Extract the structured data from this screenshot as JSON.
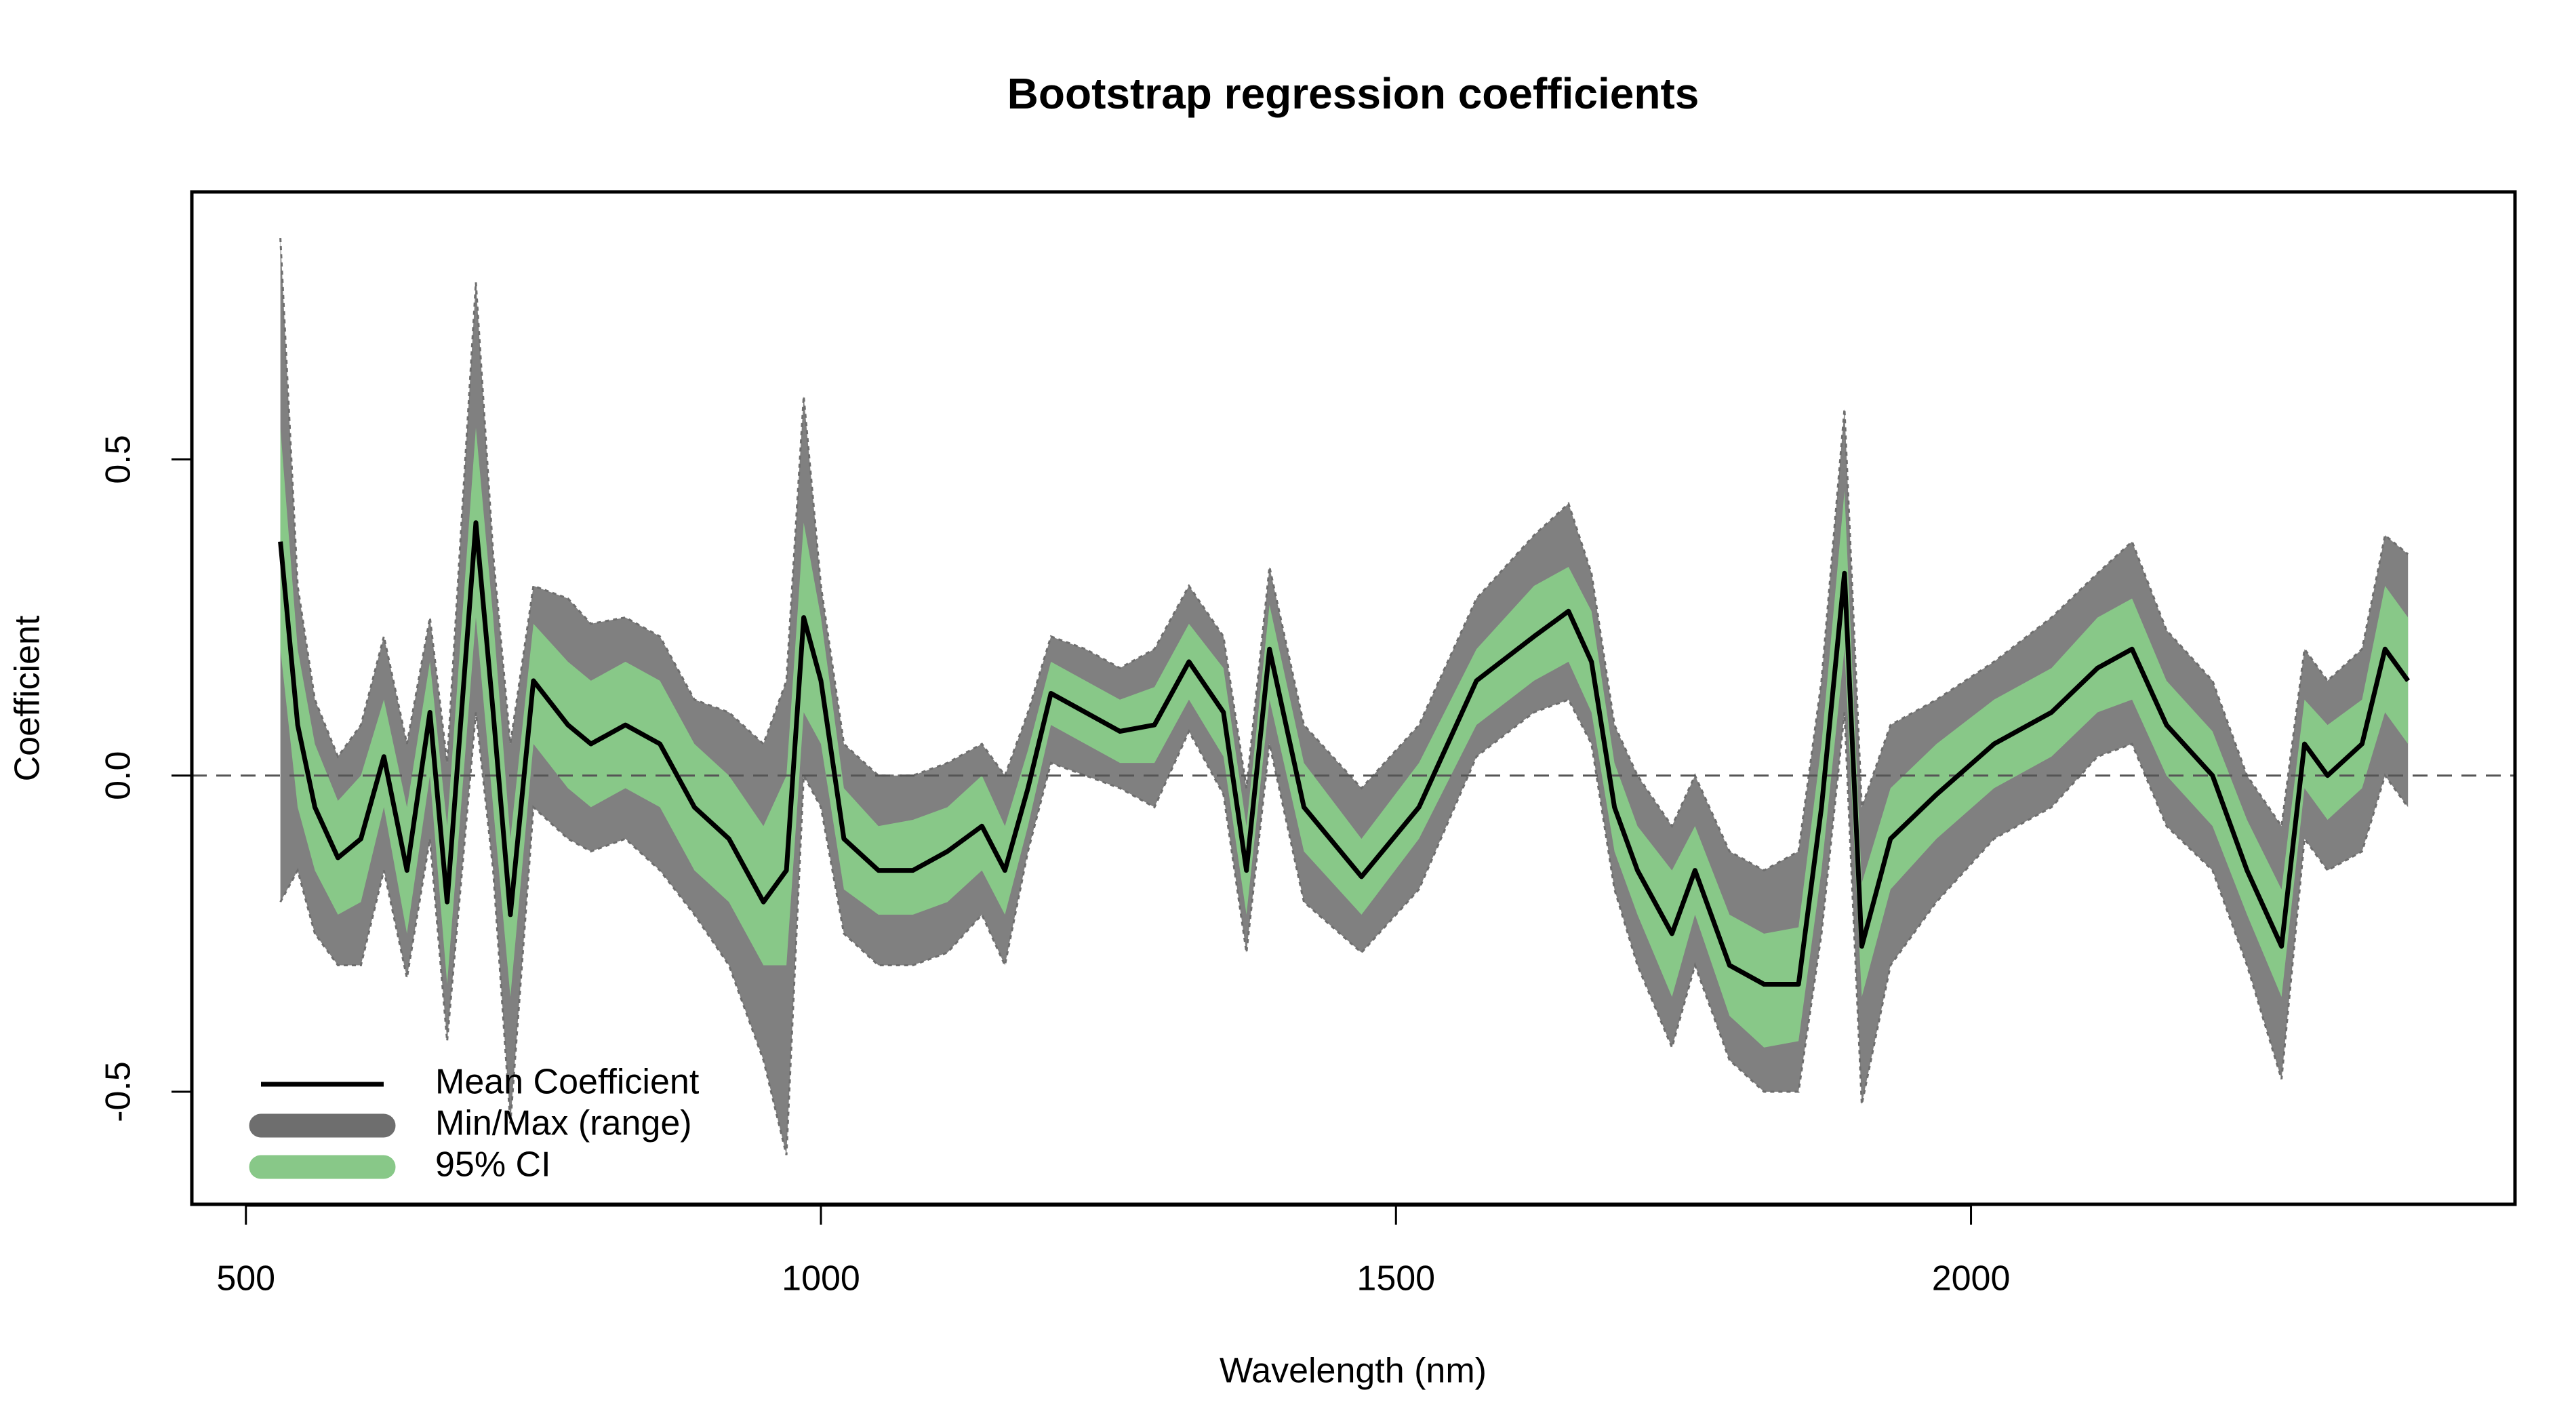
{
  "chart_data": {
    "type": "band-line",
    "title": "Bootstrap regression coefficients",
    "xlabel": "Wavelength (nm)",
    "ylabel": "Coefficient",
    "xlim": [
      453,
      2473
    ],
    "ylim": [
      -0.678,
      0.923
    ],
    "xticks": [
      500,
      1000,
      1500,
      2000
    ],
    "yticks": [
      -0.5,
      {
        "value": 0,
        "label": "0.0"
      },
      0.5
    ],
    "hline": 0,
    "legend": "bottom-left",
    "x": [
      530,
      545,
      560,
      580,
      600,
      620,
      640,
      660,
      675,
      700,
      715,
      730,
      750,
      780,
      800,
      830,
      860,
      890,
      920,
      950,
      970,
      985,
      1000,
      1020,
      1050,
      1080,
      1110,
      1140,
      1160,
      1180,
      1200,
      1230,
      1260,
      1290,
      1320,
      1350,
      1370,
      1390,
      1420,
      1470,
      1520,
      1570,
      1620,
      1650,
      1670,
      1690,
      1710,
      1740,
      1760,
      1790,
      1820,
      1850,
      1870,
      1890,
      1905,
      1930,
      1970,
      2020,
      2070,
      2110,
      2140,
      2170,
      2210,
      2240,
      2270,
      2290,
      2310,
      2340,
      2360,
      2380
    ],
    "series": [
      {
        "name": "Mean Coefficient",
        "color": "#000000",
        "values": [
          0.37,
          0.08,
          -0.05,
          -0.13,
          -0.1,
          0.03,
          -0.15,
          0.1,
          -0.2,
          0.4,
          0.1,
          -0.22,
          0.15,
          0.08,
          0.05,
          0.08,
          0.05,
          -0.05,
          -0.1,
          -0.2,
          -0.15,
          0.25,
          0.15,
          -0.1,
          -0.15,
          -0.15,
          -0.12,
          -0.08,
          -0.15,
          -0.02,
          0.13,
          0.1,
          0.07,
          0.08,
          0.18,
          0.1,
          -0.15,
          0.2,
          -0.05,
          -0.16,
          -0.05,
          0.15,
          0.22,
          0.26,
          0.18,
          -0.05,
          -0.15,
          -0.25,
          -0.15,
          -0.3,
          -0.33,
          -0.33,
          -0.05,
          0.32,
          -0.27,
          -0.1,
          -0.03,
          0.05,
          0.1,
          0.17,
          0.2,
          0.08,
          0.0,
          -0.15,
          -0.27,
          0.05,
          0.0,
          0.05,
          0.2,
          0.15
        ]
      },
      {
        "name": "Min/Max (range)",
        "color": "#808080",
        "lower": [
          -0.2,
          -0.15,
          -0.25,
          -0.3,
          -0.3,
          -0.15,
          -0.32,
          -0.1,
          -0.42,
          0.1,
          -0.15,
          -0.55,
          -0.05,
          -0.1,
          -0.12,
          -0.1,
          -0.15,
          -0.22,
          -0.3,
          -0.45,
          -0.6,
          0.0,
          -0.05,
          -0.25,
          -0.3,
          -0.3,
          -0.28,
          -0.22,
          -0.3,
          -0.12,
          0.02,
          0.0,
          -0.02,
          -0.05,
          0.07,
          -0.03,
          -0.28,
          0.05,
          -0.2,
          -0.28,
          -0.18,
          0.03,
          0.1,
          0.12,
          0.05,
          -0.18,
          -0.3,
          -0.43,
          -0.3,
          -0.45,
          -0.5,
          -0.5,
          -0.25,
          0.1,
          -0.52,
          -0.3,
          -0.2,
          -0.1,
          -0.05,
          0.03,
          0.05,
          -0.08,
          -0.15,
          -0.3,
          -0.48,
          -0.1,
          -0.15,
          -0.12,
          0.0,
          -0.05
        ],
        "upper": [
          0.85,
          0.3,
          0.12,
          0.03,
          0.08,
          0.22,
          0.05,
          0.25,
          0.02,
          0.78,
          0.35,
          0.05,
          0.3,
          0.28,
          0.24,
          0.25,
          0.22,
          0.12,
          0.1,
          0.05,
          0.15,
          0.6,
          0.3,
          0.05,
          0.0,
          0.0,
          0.02,
          0.05,
          0.0,
          0.1,
          0.22,
          0.2,
          0.17,
          0.2,
          0.3,
          0.22,
          -0.02,
          0.33,
          0.08,
          -0.02,
          0.08,
          0.28,
          0.38,
          0.43,
          0.32,
          0.08,
          0.0,
          -0.08,
          0.0,
          -0.12,
          -0.15,
          -0.12,
          0.15,
          0.58,
          -0.05,
          0.08,
          0.12,
          0.18,
          0.25,
          0.32,
          0.37,
          0.23,
          0.15,
          0.0,
          -0.08,
          0.2,
          0.15,
          0.2,
          0.38,
          0.35
        ]
      },
      {
        "name": "95% CI",
        "color": "#88c888",
        "lower": [
          0.2,
          -0.05,
          -0.15,
          -0.22,
          -0.2,
          -0.05,
          -0.25,
          0.0,
          -0.33,
          0.25,
          -0.05,
          -0.35,
          0.05,
          -0.02,
          -0.05,
          -0.02,
          -0.05,
          -0.15,
          -0.2,
          -0.3,
          -0.3,
          0.1,
          0.05,
          -0.18,
          -0.22,
          -0.22,
          -0.2,
          -0.15,
          -0.22,
          -0.08,
          0.08,
          0.05,
          0.02,
          0.02,
          0.12,
          0.03,
          -0.22,
          0.12,
          -0.12,
          -0.22,
          -0.1,
          0.08,
          0.15,
          0.18,
          0.1,
          -0.12,
          -0.22,
          -0.35,
          -0.22,
          -0.38,
          -0.43,
          -0.42,
          -0.15,
          0.2,
          -0.35,
          -0.18,
          -0.1,
          -0.02,
          0.03,
          0.1,
          0.12,
          0.0,
          -0.08,
          -0.22,
          -0.35,
          -0.02,
          -0.07,
          -0.02,
          0.1,
          0.05
        ],
        "upper": [
          0.55,
          0.2,
          0.05,
          -0.04,
          0.0,
          0.12,
          -0.05,
          0.18,
          -0.08,
          0.55,
          0.25,
          -0.1,
          0.24,
          0.18,
          0.15,
          0.18,
          0.15,
          0.05,
          0.0,
          -0.08,
          0.0,
          0.4,
          0.25,
          -0.02,
          -0.08,
          -0.07,
          -0.05,
          0.0,
          -0.08,
          0.04,
          0.18,
          0.15,
          0.12,
          0.14,
          0.24,
          0.17,
          -0.08,
          0.27,
          0.02,
          -0.1,
          0.02,
          0.2,
          0.3,
          0.33,
          0.26,
          0.02,
          -0.08,
          -0.15,
          -0.08,
          -0.22,
          -0.25,
          -0.24,
          0.05,
          0.45,
          -0.17,
          -0.02,
          0.05,
          0.12,
          0.17,
          0.25,
          0.28,
          0.15,
          0.07,
          -0.07,
          -0.18,
          0.12,
          0.08,
          0.12,
          0.3,
          0.25
        ]
      }
    ]
  }
}
